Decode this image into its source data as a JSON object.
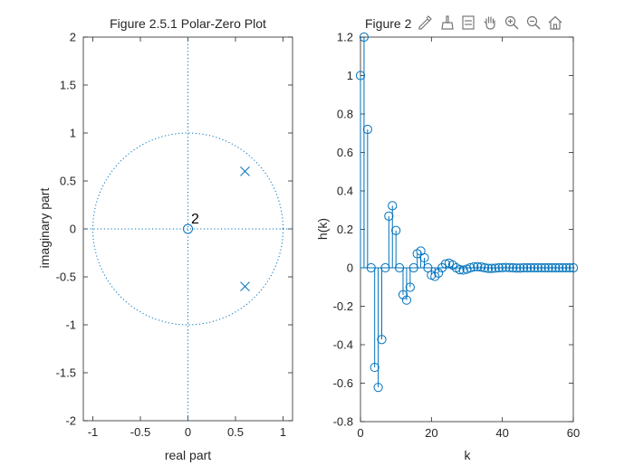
{
  "chart_data": [
    {
      "type": "scatter",
      "title": "Figure 2.5.1 Polar-Zero Plot",
      "xlabel": "real part",
      "ylabel": "imaginary part",
      "xlim": [
        -1.1,
        1.1
      ],
      "ylim": [
        -2,
        2
      ],
      "xticks": [
        -1,
        -0.5,
        0,
        0.5,
        1
      ],
      "xtick_labels": [
        "-1",
        "-0.5",
        "0",
        "0.5",
        "1"
      ],
      "yticks": [
        -2,
        -1.5,
        -1,
        -0.5,
        0,
        0.5,
        1,
        1.5,
        2
      ],
      "ytick_labels": [
        "-2",
        "-1.5",
        "-1",
        "-0.5",
        "0",
        "0.5",
        "1",
        "1.5",
        "2"
      ],
      "unit_circle": true,
      "grid": false,
      "zeros": [
        {
          "x": 0,
          "y": 0
        }
      ],
      "zero_multiplicity_label": "2",
      "poles": [
        {
          "x": 0.6,
          "y": 0.6
        },
        {
          "x": 0.6,
          "y": -0.6
        }
      ],
      "color": "#0072BD"
    },
    {
      "type": "stem",
      "title": "Figure 2",
      "xlabel": "k",
      "ylabel": "h(k)",
      "xlim": [
        0,
        60
      ],
      "ylim": [
        -0.8,
        1.2
      ],
      "xticks": [
        0,
        20,
        40,
        60
      ],
      "xtick_labels": [
        "0",
        "20",
        "40",
        "60"
      ],
      "yticks": [
        -0.8,
        -0.6,
        -0.4,
        -0.2,
        0,
        0.2,
        0.4,
        0.6,
        0.8,
        1,
        1.2
      ],
      "ytick_labels": [
        "-0.8",
        "-0.6",
        "-0.4",
        "-0.2",
        "0",
        "0.2",
        "0.4",
        "0.6",
        "0.8",
        "1",
        "1.2"
      ],
      "grid": false,
      "color": "#0072BD",
      "x": [
        0,
        1,
        2,
        3,
        4,
        5,
        6,
        7,
        8,
        9,
        10,
        11,
        12,
        13,
        14,
        15,
        16,
        17,
        18,
        19,
        20,
        21,
        22,
        23,
        24,
        25,
        26,
        27,
        28,
        29,
        30,
        31,
        32,
        33,
        34,
        35,
        36,
        37,
        38,
        39,
        40,
        41,
        42,
        43,
        44,
        45,
        46,
        47,
        48,
        49,
        50,
        51,
        52,
        53,
        54,
        55,
        56,
        57,
        58,
        59,
        60
      ],
      "values": [
        1,
        1.2,
        0.72,
        0,
        -0.518,
        -0.622,
        -0.373,
        0,
        0.269,
        0.323,
        0.194,
        0,
        -0.14,
        -0.168,
        -0.101,
        0,
        0.073,
        0.087,
        0.052,
        0,
        -0.038,
        -0.045,
        -0.027,
        0,
        0.02,
        0.024,
        0.014,
        0,
        -0.01,
        -0.012,
        -0.007,
        0,
        0.005,
        0.006,
        0.004,
        0,
        -0.003,
        -0.003,
        -0.002,
        0,
        0.001,
        0.002,
        0.001,
        0,
        -0.001,
        -0.001,
        0,
        0,
        0,
        0,
        0,
        0,
        0,
        0,
        0,
        0,
        0,
        0,
        0,
        0,
        0
      ]
    }
  ],
  "toolbar": {
    "icons": [
      "edit-plot-icon",
      "brush-icon",
      "data-cursor-icon",
      "pan-icon",
      "zoom-in-icon",
      "zoom-out-icon",
      "home-icon"
    ]
  }
}
